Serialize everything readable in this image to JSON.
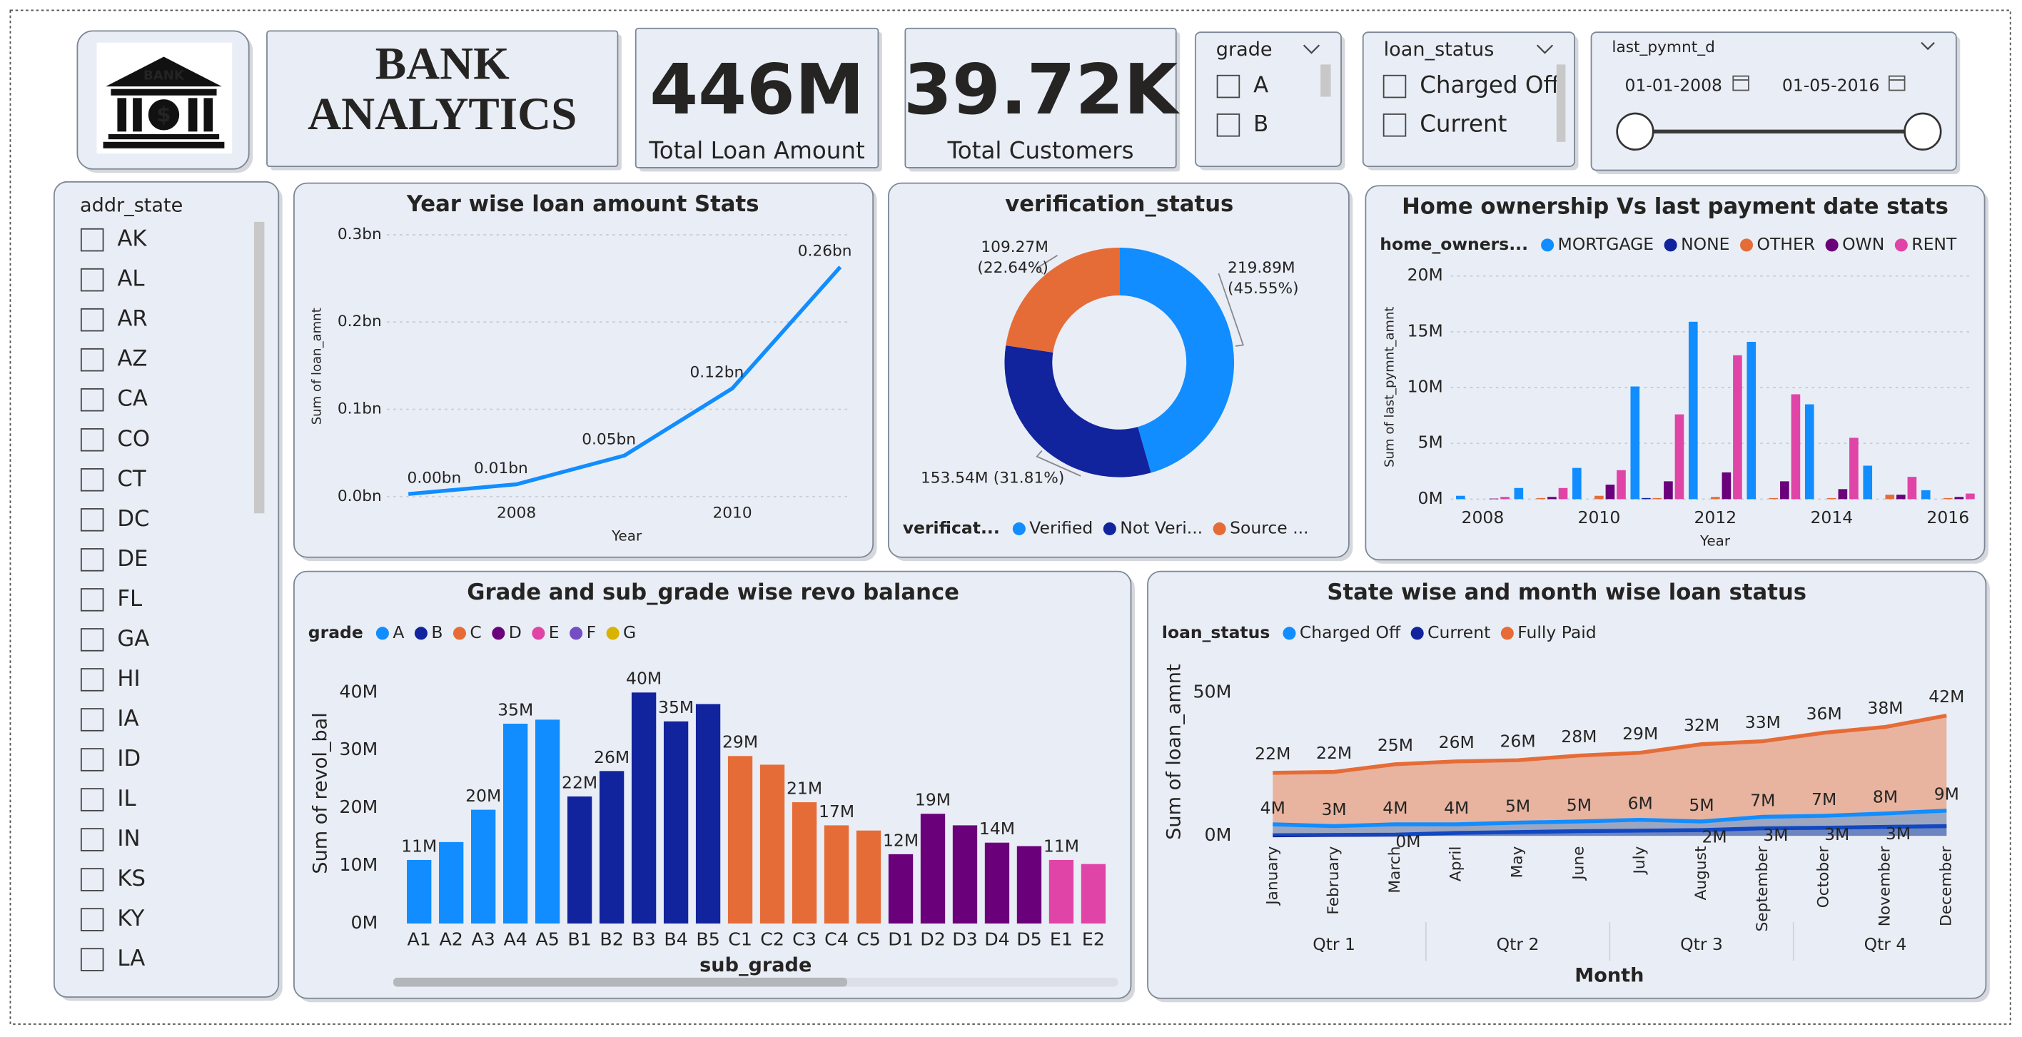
{
  "header": {
    "logo_text": "BANK",
    "logo_symbol": "$",
    "title_lines": [
      "BANK",
      "ANALYTICS"
    ]
  },
  "cards": [
    {
      "value": "446M",
      "label": "Total Loan Amount"
    },
    {
      "value": "39.72K",
      "label": "Total Customers"
    }
  ],
  "slicers": {
    "grade": {
      "title": "grade",
      "items": [
        "A",
        "B"
      ]
    },
    "loan_status": {
      "title": "loan_status",
      "items": [
        "Charged Off",
        "Current"
      ]
    },
    "last_pymnt_d": {
      "title": "last_pymnt_d",
      "start": "01-01-2008",
      "end": "01-05-2016"
    },
    "addr_state": {
      "title": "addr_state",
      "items": [
        "AK",
        "AL",
        "AR",
        "AZ",
        "CA",
        "CO",
        "CT",
        "DC",
        "DE",
        "FL",
        "GA",
        "HI",
        "IA",
        "ID",
        "IL",
        "IN",
        "KS",
        "KY",
        "LA"
      ]
    }
  },
  "chart_data": [
    {
      "type": "line",
      "title": "Year wise loan amount Stats",
      "x_label": "Year",
      "y_label": "Sum of loan_amnt",
      "x": [
        2007,
        2008,
        2009,
        2010,
        2011
      ],
      "xlim": [
        2006.8,
        2011.1
      ],
      "xticks": [
        2008,
        2010
      ],
      "ylim": [
        0,
        0.3
      ],
      "yticks": [
        {
          "value": 0,
          "label": "0.0bn"
        },
        {
          "value": 0.1,
          "label": "0.1bn"
        },
        {
          "value": 0.2,
          "label": "0.2bn"
        },
        {
          "value": 0.3,
          "label": "0.3bn"
        }
      ],
      "grid": true,
      "series": [
        {
          "color": "#118DFF",
          "values": [
            0.003,
            0.014,
            0.047,
            0.124,
            0.263
          ],
          "value_labels": [
            "0.00bn",
            "0.01bn",
            "0.05bn",
            "0.12bn",
            "0.26bn"
          ]
        }
      ]
    },
    {
      "type": "pie",
      "donut": true,
      "title": "verification_status",
      "legend_title": "verificat...",
      "categories": [
        "Verified",
        "Not Veri...",
        "Source ..."
      ],
      "values": [
        219.89,
        153.54,
        109.27
      ],
      "value_labels": [
        "219.89M",
        "153.54M",
        "109.27M"
      ],
      "percents": [
        45.55,
        31.81,
        22.64
      ],
      "percent_labels": [
        "(45.55%)",
        "(31.81%)",
        "(22.64%)"
      ],
      "colors": [
        "#118DFF",
        "#12239E",
        "#E66C37"
      ]
    },
    {
      "type": "grouped-bar",
      "title": "Home ownership Vs last payment date stats",
      "legend_title": "home_owners...",
      "x_label": "Year",
      "y_label": "Sum of last_pymnt_amnt",
      "x": [
        2008,
        2009,
        2010,
        2011,
        2012,
        2013,
        2014,
        2015,
        2016
      ],
      "xlim": [
        2007.45,
        2016.43
      ],
      "xticks": [
        2008,
        2010,
        2012,
        2014,
        2016
      ],
      "ylim": [
        0,
        20
      ],
      "yticks": [
        {
          "value": 0,
          "label": "0M"
        },
        {
          "value": 5,
          "label": "5M"
        },
        {
          "value": 10,
          "label": "10M"
        },
        {
          "value": 15,
          "label": "15M"
        },
        {
          "value": 20,
          "label": "20M"
        }
      ],
      "grid": true,
      "series": [
        {
          "name": "MORTGAGE",
          "color": "#118DFF",
          "values": [
            0.3,
            1.0,
            2.8,
            10.1,
            15.9,
            14.1,
            8.5,
            3.0,
            0.8
          ]
        },
        {
          "name": "NONE",
          "color": "#12239E",
          "values": [
            0,
            0,
            0,
            0.1,
            0,
            0,
            0,
            0,
            0
          ]
        },
        {
          "name": "OTHER",
          "color": "#E66C37",
          "values": [
            0,
            0.1,
            0.3,
            0.1,
            0.2,
            0.1,
            0.1,
            0.4,
            0.1
          ]
        },
        {
          "name": "OWN",
          "color": "#6B007B",
          "values": [
            0.05,
            0.2,
            1.3,
            1.6,
            2.4,
            1.6,
            0.9,
            0.4,
            0.2
          ]
        },
        {
          "name": "RENT",
          "color": "#E044A7",
          "values": [
            0.2,
            1.0,
            2.6,
            7.6,
            12.9,
            9.4,
            5.5,
            2.0,
            0.5
          ]
        }
      ]
    },
    {
      "type": "bar",
      "title": "Grade and sub_grade wise revo balance",
      "legend_title": "grade",
      "x_label": "sub_grade",
      "y_label": "Sum of revol_bal",
      "categories": [
        "A1",
        "A2",
        "A3",
        "A4",
        "A5",
        "B1",
        "B2",
        "B3",
        "B4",
        "B5",
        "C1",
        "C2",
        "C3",
        "C4",
        "C5",
        "D1",
        "D2",
        "D3",
        "D4",
        "D5",
        "E1",
        "E2"
      ],
      "ylim": [
        0,
        44
      ],
      "yticks": [
        {
          "value": 0,
          "label": "0M"
        },
        {
          "value": 10,
          "label": "10M"
        },
        {
          "value": 20,
          "label": "20M"
        },
        {
          "value": 30,
          "label": "30M"
        },
        {
          "value": 40,
          "label": "40M"
        }
      ],
      "series": [
        {
          "name": "A",
          "color": "#118DFF",
          "values": [
            11,
            14.1,
            19.7,
            34.6,
            35.3,
            null,
            null,
            null,
            null,
            null,
            null,
            null,
            null,
            null,
            null,
            null,
            null,
            null,
            null,
            null,
            null,
            null
          ],
          "value_labels": [
            "11M",
            null,
            "20M",
            "35M",
            null,
            null,
            null,
            null,
            null,
            null,
            null,
            null,
            null,
            null,
            null,
            null,
            null,
            null,
            null,
            null,
            null,
            null
          ]
        },
        {
          "name": "B",
          "color": "#12239E",
          "values": [
            null,
            null,
            null,
            null,
            null,
            22,
            26.4,
            40,
            35,
            38,
            null,
            null,
            null,
            null,
            null,
            null,
            null,
            null,
            null,
            null,
            null,
            null
          ],
          "value_labels": [
            null,
            null,
            null,
            null,
            null,
            "22M",
            "26M",
            "40M",
            "35M",
            null,
            null,
            null,
            null,
            null,
            null,
            null,
            null,
            null,
            null,
            null,
            null,
            null
          ]
        },
        {
          "name": "C",
          "color": "#E66C37",
          "values": [
            null,
            null,
            null,
            null,
            null,
            null,
            null,
            null,
            null,
            null,
            29,
            27.5,
            21,
            17,
            16.1,
            null,
            null,
            null,
            null,
            null,
            null,
            null
          ],
          "value_labels": [
            null,
            null,
            null,
            null,
            null,
            null,
            null,
            null,
            null,
            null,
            "29M",
            null,
            "21M",
            "17M",
            null,
            null,
            null,
            null,
            null,
            null,
            null,
            null
          ]
        },
        {
          "name": "D",
          "color": "#6B007B",
          "values": [
            null,
            null,
            null,
            null,
            null,
            null,
            null,
            null,
            null,
            null,
            null,
            null,
            null,
            null,
            null,
            12,
            19,
            17,
            14,
            13.4,
            null,
            null
          ],
          "value_labels": [
            null,
            null,
            null,
            null,
            null,
            null,
            null,
            null,
            null,
            null,
            null,
            null,
            null,
            null,
            null,
            "12M",
            "19M",
            null,
            "14M",
            null,
            null,
            null
          ]
        },
        {
          "name": "E",
          "color": "#E044A7",
          "values": [
            null,
            null,
            null,
            null,
            null,
            null,
            null,
            null,
            null,
            null,
            null,
            null,
            null,
            null,
            null,
            null,
            null,
            null,
            null,
            null,
            11,
            10.3
          ],
          "value_labels": [
            null,
            null,
            null,
            null,
            null,
            null,
            null,
            null,
            null,
            null,
            null,
            null,
            null,
            null,
            null,
            null,
            null,
            null,
            null,
            null,
            "11M",
            null
          ]
        },
        {
          "name": "F",
          "color": "#744EC2",
          "values": [
            null,
            null,
            null,
            null,
            null,
            null,
            null,
            null,
            null,
            null,
            null,
            null,
            null,
            null,
            null,
            null,
            null,
            null,
            null,
            null,
            null,
            null
          ]
        },
        {
          "name": "G",
          "color": "#D9B300",
          "values": [
            null,
            null,
            null,
            null,
            null,
            null,
            null,
            null,
            null,
            null,
            null,
            null,
            null,
            null,
            null,
            null,
            null,
            null,
            null,
            null,
            null,
            null
          ]
        }
      ]
    },
    {
      "type": "area",
      "title": "State wise and month wise loan status",
      "legend_title": "loan_status",
      "x_label": "Month",
      "y_label": "Sum of loan_amnt",
      "categories": [
        "January",
        "February",
        "March",
        "April",
        "May",
        "June",
        "July",
        "August",
        "September",
        "October",
        "November",
        "December"
      ],
      "quarters": [
        "Qtr 1",
        "Qtr 2",
        "Qtr 3",
        "Qtr 4"
      ],
      "ylim": [
        0,
        52
      ],
      "yticks": [
        {
          "value": 0,
          "label": "0M"
        },
        {
          "value": 50,
          "label": "50M"
        }
      ],
      "series": [
        {
          "name": "Charged Off",
          "color": "#118DFF",
          "values": [
            4,
            3.4,
            4,
            4,
            4.6,
            5,
            5.6,
            5,
            6.6,
            7,
            7.8,
            8.8
          ],
          "value_labels": [
            "4M",
            "3M",
            "4M",
            "4M",
            "5M",
            "5M",
            "6M",
            "5M",
            "7M",
            "7M",
            "8M",
            "9M"
          ]
        },
        {
          "name": "Current",
          "color": "#12239E",
          "values": [
            0.2,
            0.3,
            0.4,
            1,
            1.3,
            1.6,
            1.8,
            2,
            2.6,
            2.8,
            3.1,
            3.4
          ],
          "value_labels": [
            null,
            null,
            "0M",
            null,
            null,
            null,
            null,
            "2M",
            "3M",
            "3M",
            "3M",
            null
          ]
        },
        {
          "name": "Fully Paid",
          "color": "#E66C37",
          "values": [
            22,
            22.3,
            25,
            26,
            26.4,
            28,
            29,
            32,
            33,
            36,
            38,
            42
          ],
          "value_labels": [
            "22M",
            "22M",
            "25M",
            "26M",
            "26M",
            "28M",
            "29M",
            "32M",
            "33M",
            "36M",
            "38M",
            "42M"
          ]
        }
      ]
    }
  ]
}
